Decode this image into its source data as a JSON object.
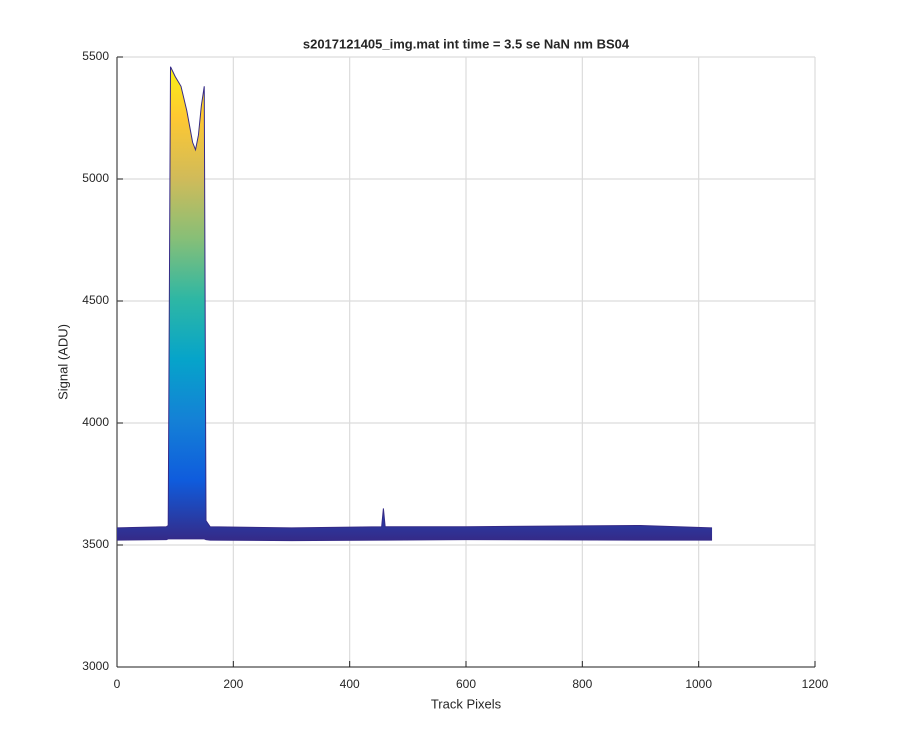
{
  "chart_data": {
    "type": "band",
    "title": "s2017121405_img.mat int time = 3.5 se  NaN nm BS04",
    "x_label": "Track Pixels",
    "y_label": "Signal (ADU)",
    "x": [
      0,
      85,
      88,
      92,
      100,
      110,
      120,
      130,
      135,
      140,
      145,
      150,
      153,
      160,
      300,
      455,
      458,
      461,
      600,
      900,
      1023
    ],
    "series": [
      {
        "color": "#352a87",
        "values": [
          3570,
          3575,
          3580,
          5460,
          5420,
          5380,
          5280,
          5150,
          5120,
          5180,
          5300,
          5380,
          3600,
          3575,
          3570,
          3575,
          3650,
          3575,
          3575,
          3580,
          3570
        ]
      },
      {
        "color": "#352a87",
        "values": [
          3520,
          3522,
          3525,
          3525,
          3525,
          3525,
          3525,
          3525,
          3525,
          3525,
          3525,
          3525,
          3522,
          3520,
          3518,
          3520,
          3520,
          3520,
          3522,
          3520,
          3520
        ]
      }
    ],
    "colormap": [
      "#352a87",
      "#0f5cdd",
      "#1481d6",
      "#06a4ca",
      "#2eb7a4",
      "#87bf77",
      "#d1bb59",
      "#fec832",
      "#f9fb0e"
    ],
    "xlim": [
      0,
      1200
    ],
    "xticks": [
      0,
      200,
      400,
      600,
      800,
      1000,
      1200
    ],
    "ylim": [
      3000,
      5500
    ],
    "yticks": [
      3000,
      3500,
      4000,
      4500,
      5000,
      5500
    ],
    "grid": true
  }
}
